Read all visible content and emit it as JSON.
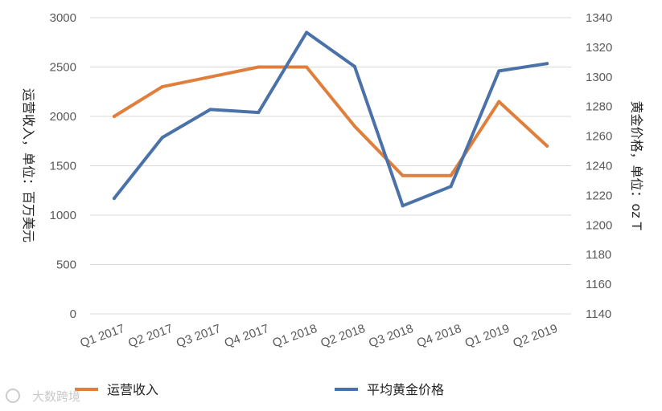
{
  "chart_data": {
    "type": "line",
    "categories": [
      "Q1 2017",
      "Q2 2017",
      "Q3 2017",
      "Q4 2017",
      "Q1 2018",
      "Q2 2018",
      "Q3 2018",
      "Q4 2018",
      "Q1 2019",
      "Q2 2019"
    ],
    "series": [
      {
        "name": "运营收入",
        "axis": "left",
        "color": "#E07E3C",
        "values": [
          2000,
          2300,
          2400,
          2500,
          2500,
          1900,
          1400,
          1400,
          2150,
          1700
        ]
      },
      {
        "name": "平均黄金价格",
        "axis": "right",
        "color": "#4A72A8",
        "values": [
          1218,
          1259,
          1278,
          1276,
          1330,
          1307,
          1213,
          1226,
          1304,
          1309
        ]
      }
    ],
    "ylabel_left": "运营收入，单位：百万美元",
    "ylabel_right": "黄金价格，单位：oz T",
    "ylim_left": [
      0,
      3000
    ],
    "ylim_right": [
      1140,
      1340
    ],
    "yticks_left": [
      "0",
      "500",
      "1000",
      "1500",
      "2000",
      "2500",
      "3000"
    ],
    "yticks_right": [
      "1140",
      "1160",
      "1180",
      "1200",
      "1220",
      "1240",
      "1260",
      "1280",
      "1300",
      "1320",
      "1340"
    ],
    "grid": true,
    "legend_position": "bottom"
  },
  "watermark": "大数跨境"
}
